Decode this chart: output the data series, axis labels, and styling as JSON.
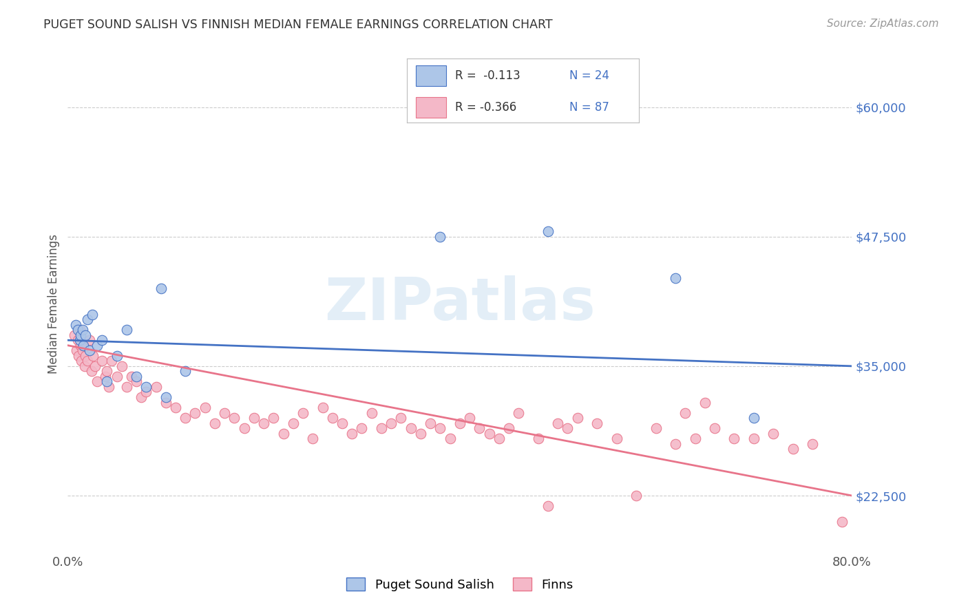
{
  "title": "PUGET SOUND SALISH VS FINNISH MEDIAN FEMALE EARNINGS CORRELATION CHART",
  "source": "Source: ZipAtlas.com",
  "ylabel": "Median Female Earnings",
  "ytick_labels": [
    "$22,500",
    "$35,000",
    "$47,500",
    "$60,000"
  ],
  "ytick_values": [
    22500,
    35000,
    47500,
    60000
  ],
  "xlim": [
    0.0,
    0.8
  ],
  "ylim": [
    17000,
    65000
  ],
  "blue_color": "#adc6e8",
  "blue_line_color": "#4472c4",
  "pink_color": "#f4b8c8",
  "pink_line_color": "#e8748a",
  "background_color": "#ffffff",
  "grid_color": "#cccccc",
  "title_color": "#333333",
  "source_color": "#999999",
  "legend_labels": [
    "Puget Sound Salish",
    "Finns"
  ],
  "blue_x": [
    0.008,
    0.01,
    0.012,
    0.013,
    0.015,
    0.016,
    0.018,
    0.02,
    0.022,
    0.025,
    0.03,
    0.035,
    0.04,
    0.05,
    0.06,
    0.07,
    0.08,
    0.095,
    0.1,
    0.12,
    0.38,
    0.49,
    0.62,
    0.7
  ],
  "blue_y": [
    39000,
    38500,
    37500,
    38000,
    38500,
    37000,
    38000,
    39500,
    36500,
    40000,
    37000,
    37500,
    33500,
    36000,
    38500,
    34000,
    33000,
    42500,
    32000,
    34500,
    47500,
    48000,
    43500,
    30000
  ],
  "pink_x": [
    0.007,
    0.009,
    0.01,
    0.011,
    0.012,
    0.013,
    0.014,
    0.015,
    0.016,
    0.017,
    0.018,
    0.02,
    0.022,
    0.024,
    0.026,
    0.028,
    0.03,
    0.035,
    0.038,
    0.04,
    0.042,
    0.045,
    0.05,
    0.055,
    0.06,
    0.065,
    0.07,
    0.075,
    0.08,
    0.09,
    0.1,
    0.11,
    0.12,
    0.13,
    0.14,
    0.15,
    0.16,
    0.17,
    0.18,
    0.19,
    0.2,
    0.21,
    0.22,
    0.23,
    0.24,
    0.25,
    0.26,
    0.27,
    0.28,
    0.29,
    0.3,
    0.31,
    0.32,
    0.33,
    0.34,
    0.35,
    0.36,
    0.37,
    0.38,
    0.39,
    0.4,
    0.41,
    0.42,
    0.43,
    0.44,
    0.45,
    0.46,
    0.48,
    0.49,
    0.5,
    0.51,
    0.52,
    0.54,
    0.56,
    0.58,
    0.6,
    0.62,
    0.63,
    0.64,
    0.65,
    0.66,
    0.68,
    0.7,
    0.72,
    0.74,
    0.76,
    0.79
  ],
  "pink_y": [
    38000,
    36500,
    37500,
    36000,
    38500,
    37000,
    35500,
    36500,
    37000,
    35000,
    36000,
    35500,
    37500,
    34500,
    36000,
    35000,
    33500,
    35500,
    34000,
    34500,
    33000,
    35500,
    34000,
    35000,
    33000,
    34000,
    33500,
    32000,
    32500,
    33000,
    31500,
    31000,
    30000,
    30500,
    31000,
    29500,
    30500,
    30000,
    29000,
    30000,
    29500,
    30000,
    28500,
    29500,
    30500,
    28000,
    31000,
    30000,
    29500,
    28500,
    29000,
    30500,
    29000,
    29500,
    30000,
    29000,
    28500,
    29500,
    29000,
    28000,
    29500,
    30000,
    29000,
    28500,
    28000,
    29000,
    30500,
    28000,
    21500,
    29500,
    29000,
    30000,
    29500,
    28000,
    22500,
    29000,
    27500,
    30500,
    28000,
    31500,
    29000,
    28000,
    28000,
    28500,
    27000,
    27500,
    20000
  ],
  "blue_trend_x": [
    0.0,
    0.8
  ],
  "blue_trend_y": [
    37500,
    35000
  ],
  "pink_trend_x": [
    0.0,
    0.8
  ],
  "pink_trend_y": [
    37000,
    22500
  ],
  "watermark_text": "ZIPatlas",
  "watermark_color": "#c8dff0",
  "watermark_alpha": 0.5
}
